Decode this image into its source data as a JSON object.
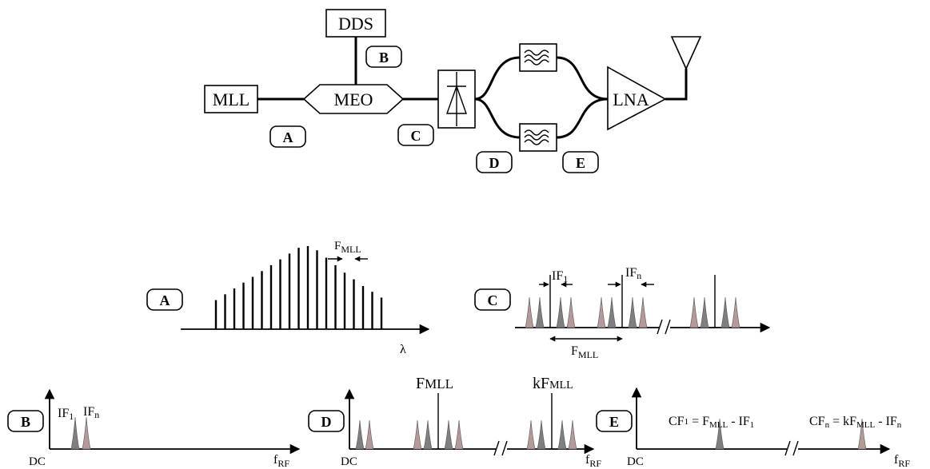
{
  "blocks": {
    "dds": "DDS",
    "mll": "MLL",
    "meo": "MEO",
    "lna": "LNA"
  },
  "points": {
    "a": "A",
    "b": "B",
    "c": "C",
    "d": "D",
    "e": "E"
  },
  "spectra": {
    "a": {
      "f_mll": "F",
      "f_mll_sub": "MLL",
      "x_axis": "λ",
      "comb_amplitudes": [
        0.35,
        0.42,
        0.49,
        0.56,
        0.63,
        0.7,
        0.77,
        0.84,
        0.91,
        0.98,
        1.0,
        0.95,
        0.86,
        0.77,
        0.68,
        0.6,
        0.52,
        0.45,
        0.38
      ]
    },
    "c": {
      "if1": "IF",
      "if1_sub": "1",
      "ifn": "IF",
      "ifn_sub": "n",
      "f_mll": "F",
      "f_mll_sub": "MLL"
    },
    "b": {
      "if1": "IF",
      "if1_sub": "1",
      "ifn": "IF",
      "ifn_sub": "n",
      "dc": "DC",
      "f_rf": "f",
      "f_rf_sub": "RF"
    },
    "d": {
      "f_mll": "F",
      "f_mll_sub": "MLL",
      "kf_mll": "kF",
      "kf_mll_sub": "MLL",
      "dc": "DC",
      "f_rf": "f",
      "f_rf_sub": "RF"
    },
    "e": {
      "cf1_a": "CF",
      "cf1_a_sub": "1",
      "cf1_b": " = F",
      "cf1_b_sub": "MLL",
      "cf1_c": " - IF",
      "cf1_c_sub": "1",
      "cfn_a": "CF",
      "cfn_a_sub": "n",
      "cfn_b": " = kF",
      "cfn_b_sub": "MLL",
      "cfn_c": " - IF",
      "cfn_c_sub": "n",
      "dc": "DC",
      "f_rf": "f",
      "f_rf_sub": "RF"
    }
  },
  "colors": {
    "peak_gray": "#7f7f7f",
    "peak_rose": "#b59a9a",
    "line": "#000000"
  }
}
